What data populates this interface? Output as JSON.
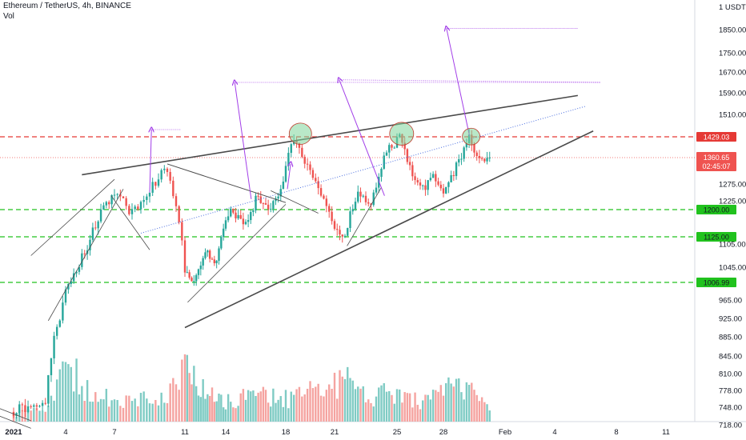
{
  "header": {
    "symbol": "Ethereum / TetherUS, 4h, BINANCE",
    "volume_label": "Vol"
  },
  "colors": {
    "up": "#26a69a",
    "down": "#ef5350",
    "up_vol": "#7fcbc4",
    "down_vol": "#f5a3a0",
    "red_level": "#e53935",
    "green_level": "#21c21e",
    "trendline": "#4a4a4a",
    "projection": "#a23ee8",
    "circle_fill": "#7fd69a",
    "circle_stroke": "#c0392b",
    "price_badge": "#ef5350"
  },
  "chart_data": {
    "type": "candlestick",
    "symbol": "ETH/USDT",
    "interval": "4h",
    "exchange": "BINANCE",
    "y_axis_unit": "1 USDT",
    "y_ticks": [
      718.0,
      748.0,
      778.0,
      810.0,
      845.0,
      885.0,
      925.0,
      965.0,
      1045.0,
      1105.0,
      1225.0,
      1275.0,
      1510.0,
      1590.0,
      1670.0,
      1750.0,
      1850.0
    ],
    "x_ticks": [
      "2021",
      "4",
      "7",
      "11",
      "14",
      "18",
      "21",
      "25",
      "28",
      "Feb",
      "4",
      "8",
      "11"
    ],
    "levels": [
      {
        "label": "1429.03",
        "value": 1429.03,
        "style": "red-dashed"
      },
      {
        "label": "1200.00",
        "value": 1200.0,
        "style": "green-dashed"
      },
      {
        "label": "1125.00",
        "value": 1125.0,
        "style": "green-dashed"
      },
      {
        "label": "1006.99",
        "value": 1006.99,
        "style": "green-dashed"
      }
    ],
    "last_price": "1360.65",
    "countdown": "02:45:07",
    "anchors": [
      {
        "day": 1,
        "price": 740
      },
      {
        "day": 3,
        "price": 760
      },
      {
        "day": 3.5,
        "price": 880
      },
      {
        "day": 4.3,
        "price": 1000
      },
      {
        "day": 5.3,
        "price": 1080
      },
      {
        "day": 6.5,
        "price": 1210
      },
      {
        "day": 7.4,
        "price": 1260
      },
      {
        "day": 8,
        "price": 1185
      },
      {
        "day": 9,
        "price": 1230
      },
      {
        "day": 10,
        "price": 1340
      },
      {
        "day": 10.8,
        "price": 1180
      },
      {
        "day": 11.2,
        "price": 1030
      },
      {
        "day": 11.8,
        "price": 1000
      },
      {
        "day": 12.7,
        "price": 1080
      },
      {
        "day": 13.4,
        "price": 1060
      },
      {
        "day": 14.5,
        "price": 1200
      },
      {
        "day": 15.6,
        "price": 1160
      },
      {
        "day": 16.3,
        "price": 1250
      },
      {
        "day": 17,
        "price": 1190
      },
      {
        "day": 17.8,
        "price": 1240
      },
      {
        "day": 18.6,
        "price": 1420
      },
      {
        "day": 19.4,
        "price": 1350
      },
      {
        "day": 20.2,
        "price": 1260
      },
      {
        "day": 21,
        "price": 1170
      },
      {
        "day": 21.7,
        "price": 1110
      },
      {
        "day": 22.6,
        "price": 1250
      },
      {
        "day": 23.5,
        "price": 1220
      },
      {
        "day": 24.4,
        "price": 1370
      },
      {
        "day": 25.3,
        "price": 1430
      },
      {
        "day": 26.1,
        "price": 1310
      },
      {
        "day": 26.8,
        "price": 1260
      },
      {
        "day": 27.6,
        "price": 1300
      },
      {
        "day": 28.2,
        "price": 1240
      },
      {
        "day": 29,
        "price": 1330
      },
      {
        "day": 29.8,
        "price": 1430
      },
      {
        "day": 30.4,
        "price": 1350
      },
      {
        "day": 31.1,
        "price": 1360.65
      }
    ],
    "volume_profile": [
      {
        "day": 1,
        "v": 0.1
      },
      {
        "day": 3,
        "v": 0.2
      },
      {
        "day": 4,
        "v": 0.9
      },
      {
        "day": 5,
        "v": 0.6
      },
      {
        "day": 6,
        "v": 0.4
      },
      {
        "day": 7,
        "v": 0.35
      },
      {
        "day": 8,
        "v": 0.3
      },
      {
        "day": 10,
        "v": 0.35
      },
      {
        "day": 11,
        "v": 0.75
      },
      {
        "day": 12,
        "v": 0.5
      },
      {
        "day": 14,
        "v": 0.3
      },
      {
        "day": 16,
        "v": 0.4
      },
      {
        "day": 18,
        "v": 0.35
      },
      {
        "day": 20,
        "v": 0.45
      },
      {
        "day": 21.5,
        "v": 0.6
      },
      {
        "day": 23,
        "v": 0.35
      },
      {
        "day": 25,
        "v": 0.45
      },
      {
        "day": 27,
        "v": 0.3
      },
      {
        "day": 29.5,
        "v": 0.6
      },
      {
        "day": 31.1,
        "v": 0.15
      }
    ],
    "volume_spikes": [
      {
        "day": 3.9,
        "v": 0.95
      },
      {
        "day": 4.2,
        "v": 0.85
      },
      {
        "day": 11.4,
        "v": 0.95
      },
      {
        "day": 11.7,
        "v": 0.78
      },
      {
        "day": 21.8,
        "v": 0.65
      },
      {
        "day": 29.9,
        "v": 0.72
      },
      {
        "day": 18.6,
        "v": 0.45
      },
      {
        "day": 25.2,
        "v": 0.5
      }
    ]
  }
}
